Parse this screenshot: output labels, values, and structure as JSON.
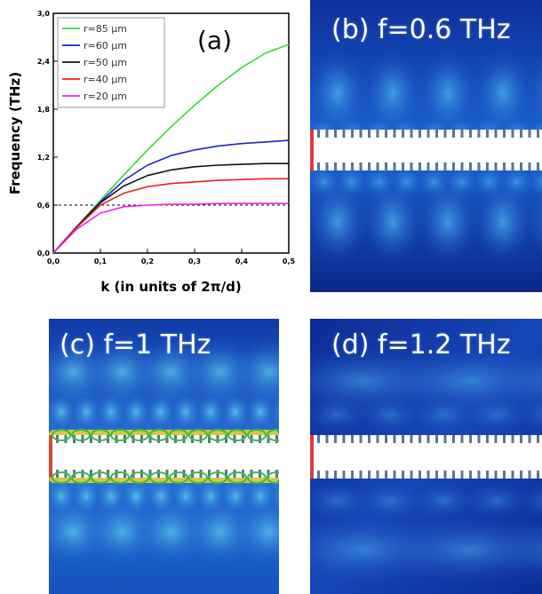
{
  "panel_a": {
    "label": "(a)",
    "chart_data": {
      "type": "line",
      "xlabel": "k (in units of 2π/d)",
      "ylabel": "Frequency (THz)",
      "xlim": [
        0,
        0.5
      ],
      "ylim": [
        0,
        3.0
      ],
      "x_ticks": [
        0.0,
        0.1,
        0.2,
        0.3,
        0.4,
        0.5
      ],
      "x_tick_labels": [
        "0,0",
        "0,1",
        "0,2",
        "0,3",
        "0,4",
        "0,5"
      ],
      "y_ticks": [
        0.0,
        0.6,
        1.2,
        1.8,
        2.4,
        3.0
      ],
      "y_tick_labels": [
        "0,0",
        "0,6",
        "1,2",
        "1,8",
        "2,4",
        "3,0"
      ],
      "grid": false,
      "legend_position": "top-left",
      "reference_line": {
        "y": 0.6,
        "style": "dashed",
        "color": "#000000"
      },
      "series": [
        {
          "name": "r=85 μm",
          "color": "#33dd33",
          "x": [
            0,
            0.05,
            0.1,
            0.15,
            0.2,
            0.25,
            0.3,
            0.35,
            0.4,
            0.45,
            0.5
          ],
          "y": [
            0,
            0.33,
            0.66,
            0.98,
            1.29,
            1.58,
            1.85,
            2.1,
            2.32,
            2.5,
            2.61
          ]
        },
        {
          "name": "r=60 μm",
          "color": "#2222cc",
          "x": [
            0,
            0.05,
            0.1,
            0.15,
            0.2,
            0.25,
            0.3,
            0.35,
            0.4,
            0.45,
            0.5
          ],
          "y": [
            0,
            0.33,
            0.64,
            0.91,
            1.1,
            1.22,
            1.29,
            1.34,
            1.37,
            1.39,
            1.41
          ]
        },
        {
          "name": "r=50 μm",
          "color": "#111111",
          "x": [
            0,
            0.05,
            0.1,
            0.15,
            0.2,
            0.25,
            0.3,
            0.35,
            0.4,
            0.45,
            0.5
          ],
          "y": [
            0,
            0.33,
            0.63,
            0.84,
            0.97,
            1.04,
            1.08,
            1.1,
            1.11,
            1.12,
            1.12
          ]
        },
        {
          "name": "r=40 μm",
          "color": "#ee2222",
          "x": [
            0,
            0.05,
            0.1,
            0.15,
            0.2,
            0.25,
            0.3,
            0.35,
            0.4,
            0.45,
            0.5
          ],
          "y": [
            0,
            0.32,
            0.6,
            0.75,
            0.83,
            0.87,
            0.89,
            0.91,
            0.92,
            0.93,
            0.93
          ]
        },
        {
          "name": "r=20 μm",
          "color": "#ee22ee",
          "x": [
            0,
            0.05,
            0.1,
            0.15,
            0.2,
            0.25,
            0.3,
            0.35,
            0.4,
            0.45,
            0.5
          ],
          "y": [
            0,
            0.3,
            0.5,
            0.58,
            0.6,
            0.61,
            0.61,
            0.62,
            0.62,
            0.62,
            0.62
          ]
        }
      ]
    }
  },
  "panel_b": {
    "label": "(b) f=0.6 THz"
  },
  "panel_c": {
    "label": "(c) f=1 THz"
  },
  "panel_d": {
    "label": "(d) f=1.2 THz"
  }
}
